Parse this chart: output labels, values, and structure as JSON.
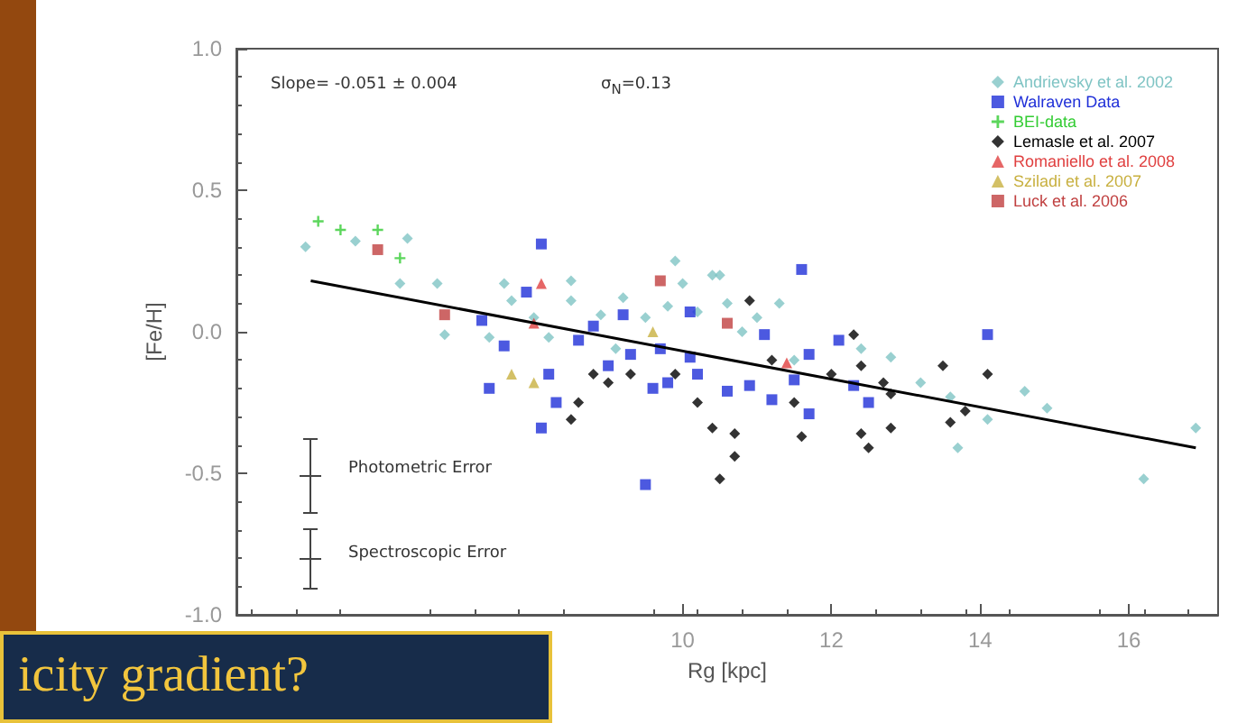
{
  "chart_data": {
    "type": "scatter",
    "xlabel": "Rg [kpc]",
    "ylabel": "[Fe/H]",
    "xlim": [
      4,
      17.2
    ],
    "xticks": [
      10,
      12,
      14,
      16
    ],
    "ylim": [
      -1.0,
      1.0
    ],
    "yticks": [
      {
        "value": -1.0,
        "label": "-1.0"
      },
      {
        "value": -0.5,
        "label": "-0.5"
      },
      {
        "value": 0,
        "label": "0.0"
      },
      {
        "value": 0.5,
        "label": "0.5"
      },
      {
        "value": 1.0,
        "label": "1.0"
      }
    ],
    "grid": false,
    "legend": "top right",
    "annotations": [
      "Slope= -0.051 ± 0.004",
      "σ$_{N}$=0.13",
      "Photometric Error",
      "Spectroscopic Error",
      "icity gradient?"
    ],
    "series": [
      {
        "name": "Andrievsky et al. 2002",
        "color": "#7fc4c4",
        "marker": "diamond",
        "x": [
          4.93,
          5.6,
          6.3,
          6.2,
          6.7,
          7.6,
          6.8,
          8.5,
          8.5,
          8.9,
          9.2,
          9.9,
          10.0,
          10.4,
          9.8,
          7.7,
          8.0,
          8.2,
          9.1,
          7.4,
          10.5,
          10.2,
          11.3,
          12.4,
          12.8,
          13.2,
          13.6,
          13.7,
          14.1,
          14.6,
          14.9,
          16.2,
          16.9,
          10.8,
          11.5,
          9.5,
          10.6,
          11.0
        ],
        "values": [
          0.3,
          0.32,
          0.33,
          0.17,
          0.17,
          0.17,
          -0.01,
          0.18,
          0.11,
          0.06,
          0.12,
          0.25,
          0.17,
          0.2,
          0.09,
          0.11,
          0.05,
          -0.02,
          -0.06,
          -0.02,
          0.2,
          0.07,
          0.1,
          -0.06,
          -0.09,
          -0.18,
          -0.23,
          -0.41,
          -0.31,
          -0.21,
          -0.27,
          -0.52,
          -0.34,
          0.0,
          -0.1,
          0.05,
          0.1,
          0.05
        ]
      },
      {
        "name": "Walraven Data",
        "color": "#1f2fd8",
        "marker": "square",
        "x": [
          8.1,
          7.9,
          7.3,
          7.6,
          7.4,
          9.2,
          10.1,
          9.7,
          8.1,
          8.3,
          8.2,
          9.5,
          9.8,
          10.1,
          11.6,
          14.1,
          11.1,
          12.1,
          11.7,
          10.6,
          10.9,
          11.2,
          11.7,
          11.5,
          12.5,
          12.3,
          10.2,
          8.6,
          9.0,
          9.3,
          8.8,
          9.6
        ],
        "values": [
          0.31,
          0.14,
          0.04,
          -0.05,
          -0.2,
          0.06,
          0.07,
          -0.06,
          -0.34,
          -0.25,
          -0.15,
          -0.54,
          -0.18,
          -0.09,
          0.22,
          -0.01,
          -0.01,
          -0.03,
          -0.08,
          -0.21,
          -0.19,
          -0.24,
          -0.29,
          -0.17,
          -0.25,
          -0.19,
          -0.15,
          -0.03,
          -0.12,
          -0.08,
          0.02,
          -0.2
        ]
      },
      {
        "name": "BEI-data",
        "color": "#33cc33",
        "marker": "cross",
        "x": [
          5.1,
          5.4,
          5.9,
          6.2
        ],
        "values": [
          0.39,
          0.36,
          0.36,
          0.26
        ]
      },
      {
        "name": "Lemasle et al. 2007",
        "color": "#000000",
        "marker": "diamond",
        "x": [
          8.8,
          9.3,
          9.9,
          9.0,
          8.5,
          8.6,
          10.4,
          10.9,
          12.3,
          13.5,
          14.1,
          10.2,
          10.7,
          10.7,
          10.5,
          11.5,
          11.6,
          12.0,
          12.4,
          12.4,
          12.5,
          12.8,
          12.8,
          13.6,
          13.8,
          12.7,
          11.2
        ],
        "values": [
          -0.15,
          -0.15,
          -0.15,
          -0.18,
          -0.31,
          -0.25,
          -0.34,
          0.11,
          -0.01,
          -0.12,
          -0.15,
          -0.25,
          -0.36,
          -0.44,
          -0.52,
          -0.25,
          -0.37,
          -0.15,
          -0.12,
          -0.36,
          -0.41,
          -0.22,
          -0.34,
          -0.32,
          -0.28,
          -0.18,
          -0.1
        ]
      },
      {
        "name": "Romaniello et al. 2008",
        "color": "#e04040",
        "marker": "triangle",
        "x": [
          8.1,
          11.4,
          8.0
        ],
        "values": [
          0.17,
          -0.11,
          0.03
        ]
      },
      {
        "name": "Sziladi et al. 2007",
        "color": "#c8b040",
        "marker": "triangle",
        "x": [
          7.7,
          8.0,
          9.6
        ],
        "values": [
          -0.15,
          -0.18,
          0.0
        ]
      },
      {
        "name": "Luck et al. 2006",
        "color": "#c04040",
        "marker": "square",
        "x": [
          5.9,
          6.8,
          9.7,
          10.6
        ],
        "values": [
          0.29,
          0.06,
          0.18,
          0.03
        ]
      },
      {
        "type": "line",
        "color": "#000000",
        "marker": "none",
        "x": [
          5.0,
          16.9
        ],
        "values": [
          0.18,
          -0.41
        ]
      }
    ]
  }
}
